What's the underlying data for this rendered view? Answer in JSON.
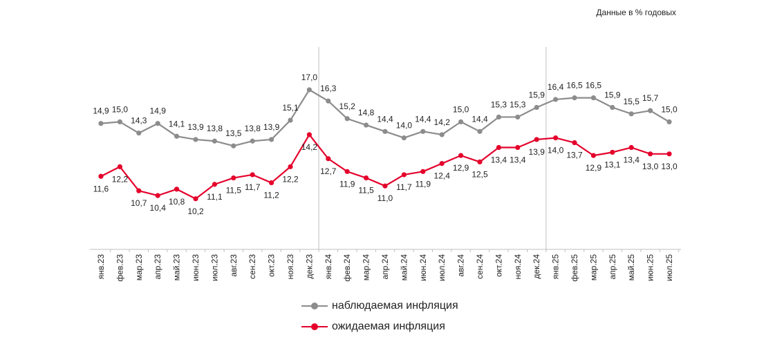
{
  "chart_data": {
    "type": "line",
    "unit_note": "Данные в % годовых",
    "categories": [
      "янв.23",
      "фев.23",
      "мар.23",
      "апр.23",
      "май.23",
      "июн.23",
      "июл.23",
      "авг.23",
      "сен.23",
      "окт.23",
      "ноя.23",
      "дек.23",
      "янв.24",
      "фев.24",
      "мар.24",
      "апр.24",
      "май.24",
      "июн.24",
      "июл.24",
      "авг.24",
      "сен.24",
      "окт.24",
      "ноя.24",
      "дек.24",
      "янв.25",
      "фев.25",
      "мар.25",
      "апр.25",
      "май.25",
      "июн.25",
      "июл.25"
    ],
    "series": [
      {
        "name": "наблюдаемая инфляция",
        "color": "#8c8c8c",
        "values": [
          14.9,
          15.0,
          14.3,
          14.9,
          14.1,
          13.9,
          13.8,
          13.5,
          13.8,
          13.9,
          15.1,
          17.0,
          16.3,
          15.2,
          14.8,
          14.4,
          14.0,
          14.4,
          14.2,
          15.0,
          14.4,
          15.3,
          15.3,
          15.9,
          16.4,
          16.5,
          16.5,
          15.9,
          15.5,
          15.7,
          15.0
        ],
        "labels": [
          "14,9",
          "15,0",
          "14,3",
          "14,9",
          "14,1",
          "13,9",
          "13,8",
          "13,5",
          "13,8",
          "13,9",
          "15,1",
          "17,0",
          "16,3",
          "15,2",
          "14,8",
          "14,4",
          "14,0",
          "14,4",
          "14,2",
          "15,0",
          "14,4",
          "15,3",
          "15,3",
          "15,9",
          "16,4",
          "16,5",
          "16,5",
          "15,9",
          "15,5",
          "15,7",
          "15,0"
        ]
      },
      {
        "name": "ожидаемая инфляция",
        "color": "#e4002b",
        "values": [
          11.6,
          12.2,
          10.7,
          10.4,
          10.8,
          10.2,
          11.1,
          11.5,
          11.7,
          11.2,
          12.2,
          14.2,
          12.7,
          11.9,
          11.5,
          11.0,
          11.7,
          11.9,
          12.4,
          12.9,
          12.5,
          13.4,
          13.4,
          13.9,
          14.0,
          13.7,
          12.9,
          13.1,
          13.4,
          13.0,
          13.0
        ],
        "labels": [
          "11,6",
          "12,2",
          "10,7",
          "10,4",
          "10,8",
          "10,2",
          "11,1",
          "11,5",
          "11,7",
          "11,2",
          "12,2",
          "14,2",
          "12,7",
          "11,9",
          "11,5",
          "11,0",
          "11,7",
          "11,9",
          "12,4",
          "12,9",
          "12,5",
          "13,4",
          "13,4",
          "13,9",
          "14,0",
          "13,7",
          "12,9",
          "13,1",
          "13,4",
          "13,0",
          "13,0"
        ]
      }
    ],
    "year_separators_after": [
      "дек.23",
      "дек.24"
    ],
    "legend_position": "bottom-center",
    "grid": false
  }
}
